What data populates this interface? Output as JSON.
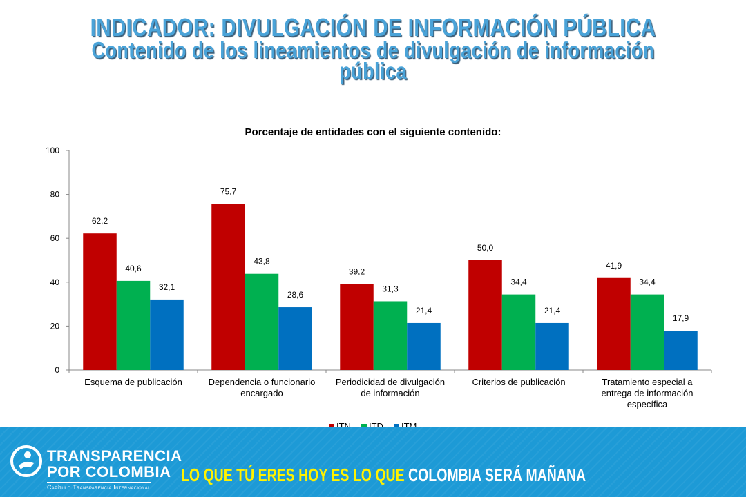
{
  "header": {
    "title": "INDICADOR: DIVULGACIÓN DE INFORMACIÓN PÚBLICA",
    "subtitle_line1": "Contenido de los lineamientos de divulgación de información",
    "subtitle_line2": "pública"
  },
  "chart_data": {
    "type": "bar",
    "title": "Porcentaje de entidades con el siguiente contenido:",
    "categories": [
      [
        "Esquema de publicación"
      ],
      [
        "Dependencia o funcionario",
        "encargado"
      ],
      [
        "Periodicidad de divulgación",
        "de información"
      ],
      [
        "Criterios de publicación"
      ],
      [
        "Tratamiento especial a",
        "entrega de información",
        "específica"
      ]
    ],
    "series": [
      {
        "name": "ITN",
        "values": [
          62.2,
          75.7,
          39.2,
          50.0,
          41.9
        ],
        "labels": [
          "62,2",
          "75,7",
          "39,2",
          "50,0",
          "41,9"
        ],
        "color": "#c00000"
      },
      {
        "name": "ITD",
        "values": [
          40.6,
          43.8,
          31.3,
          34.4,
          34.4
        ],
        "labels": [
          "40,6",
          "43,8",
          "31,3",
          "34,4",
          "34,4"
        ],
        "color": "#00b050"
      },
      {
        "name": "ITM",
        "values": [
          32.1,
          28.6,
          21.4,
          21.4,
          17.9
        ],
        "labels": [
          "32,1",
          "28,6",
          "21,4",
          "21,4",
          "17,9"
        ],
        "color": "#0070c0"
      }
    ],
    "yticks": [
      "0",
      "20",
      "40",
      "60",
      "80",
      "100"
    ],
    "ylim": [
      0,
      100
    ],
    "grid": false,
    "legend_position": "bottom"
  },
  "footer": {
    "org_line1": "TRANSPARENCIA",
    "org_line2": "POR COLOMBIA",
    "org_subtitle": "Capítulo Transparencia Internacional",
    "slogan_yellow": "LO QUE TÚ ERES HOY ES LO QUE ",
    "slogan_white": "COLOMBIA SERÁ MAÑANA",
    "logo_icon": "person-circle-icon",
    "bg_color": "#1d9ad6",
    "slogan_color": "#fff200"
  }
}
